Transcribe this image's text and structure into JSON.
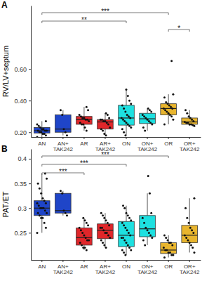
{
  "chart_data": [
    {
      "type": "box",
      "title": "A",
      "y_label": "RV/LV+septum",
      "categories": [
        "AN",
        "AN+\nTAK242",
        "AR",
        "AR+\nTAK242",
        "ON",
        "ON+\nTAK242",
        "OR",
        "OR+\nTAK242"
      ],
      "colors": [
        "#1f45c8",
        "#1f45c8",
        "#e0262a",
        "#e0262a",
        "#1ee0e0",
        "#1ee0e0",
        "#e8b52e",
        "#e8b52e"
      ],
      "ylim": [
        0.17,
        1.0
      ],
      "yticks": [
        {
          "value": 0.2,
          "label": "0.20"
        },
        {
          "value": 0.4,
          "label": "0.40"
        },
        {
          "value": 0.6,
          "label": "0.60"
        }
      ],
      "boxes": [
        {
          "min": 0.17,
          "q1": 0.195,
          "median": 0.21,
          "q3": 0.23,
          "max": 0.27,
          "points": [
            0.17,
            0.18,
            0.19,
            0.19,
            0.2,
            0.2,
            0.21,
            0.21,
            0.21,
            0.22,
            0.22,
            0.23,
            0.24,
            0.25,
            0.27
          ]
        },
        {
          "min": 0.18,
          "q1": 0.2,
          "median": 0.22,
          "q3": 0.31,
          "max": 0.34,
          "points": [
            0.18,
            0.2,
            0.22,
            0.31,
            0.34
          ]
        },
        {
          "min": 0.21,
          "q1": 0.25,
          "median": 0.28,
          "q3": 0.3,
          "max": 0.36,
          "points": [
            0.21,
            0.23,
            0.25,
            0.25,
            0.26,
            0.27,
            0.28,
            0.28,
            0.29,
            0.29,
            0.3,
            0.31,
            0.34,
            0.36
          ]
        },
        {
          "min": 0.18,
          "q1": 0.22,
          "median": 0.265,
          "q3": 0.28,
          "max": 0.32,
          "points": [
            0.18,
            0.19,
            0.21,
            0.22,
            0.23,
            0.25,
            0.26,
            0.27,
            0.27,
            0.28,
            0.28,
            0.29,
            0.31,
            0.32
          ]
        },
        {
          "min": 0.18,
          "q1": 0.245,
          "median": 0.29,
          "q3": 0.37,
          "max": 0.47,
          "points": [
            0.18,
            0.2,
            0.22,
            0.23,
            0.24,
            0.25,
            0.26,
            0.27,
            0.28,
            0.29,
            0.29,
            0.3,
            0.31,
            0.33,
            0.35,
            0.37,
            0.38,
            0.4,
            0.43,
            0.47
          ]
        },
        {
          "min": 0.21,
          "q1": 0.255,
          "median": 0.285,
          "q3": 0.32,
          "max": 0.35,
          "points": [
            0.21,
            0.23,
            0.25,
            0.26,
            0.27,
            0.28,
            0.29,
            0.3,
            0.31,
            0.33,
            0.34,
            0.35
          ]
        },
        {
          "min": 0.25,
          "q1": 0.31,
          "median": 0.35,
          "q3": 0.38,
          "max": 0.44,
          "points": [
            0.25,
            0.28,
            0.3,
            0.31,
            0.32,
            0.33,
            0.34,
            0.35,
            0.35,
            0.36,
            0.37,
            0.38,
            0.39,
            0.42,
            0.44,
            0.65
          ]
        },
        {
          "min": 0.24,
          "q1": 0.25,
          "median": 0.265,
          "q3": 0.29,
          "max": 0.34,
          "points": [
            0.24,
            0.245,
            0.25,
            0.25,
            0.26,
            0.26,
            0.265,
            0.27,
            0.28,
            0.29,
            0.3,
            0.32,
            0.34
          ]
        }
      ],
      "annotations": [
        {
          "between": [
            "AN",
            "OR"
          ],
          "text": "***"
        },
        {
          "between": [
            "AN",
            "ON"
          ],
          "text": "**"
        },
        {
          "between": [
            "OR",
            "OR+\nTAK242"
          ],
          "text": "*"
        }
      ]
    },
    {
      "type": "box",
      "title": "B",
      "y_label": "PAT/ET",
      "categories": [
        "AN",
        "AN+\nTAK242",
        "AR",
        "AR+\nTAK242",
        "ON",
        "ON+\nTAK242",
        "OR",
        "OR+\nTAK242"
      ],
      "colors": [
        "#1f45c8",
        "#1f45c8",
        "#e0262a",
        "#e0262a",
        "#1ee0e0",
        "#1ee0e0",
        "#e8b52e",
        "#e8b52e"
      ],
      "ylim": [
        0.195,
        0.42
      ],
      "yticks": [
        0.25,
        0.3,
        0.35,
        0.4
      ],
      "boxes": [
        {
          "min": 0.25,
          "q1": 0.285,
          "median": 0.3,
          "q3": 0.315,
          "max": 0.37,
          "points": [
            0.25,
            0.26,
            0.27,
            0.28,
            0.28,
            0.285,
            0.29,
            0.29,
            0.295,
            0.3,
            0.3,
            0.3,
            0.305,
            0.31,
            0.31,
            0.315,
            0.32,
            0.33,
            0.34,
            0.35,
            0.36,
            0.37
          ]
        },
        {
          "min": 0.285,
          "q1": 0.29,
          "median": 0.295,
          "q3": 0.33,
          "max": 0.335,
          "points": [
            0.285,
            0.29,
            0.295,
            0.33,
            0.335
          ]
        },
        {
          "min": 0.215,
          "q1": 0.225,
          "median": 0.24,
          "q3": 0.26,
          "max": 0.28,
          "points": [
            0.215,
            0.22,
            0.22,
            0.225,
            0.23,
            0.235,
            0.235,
            0.24,
            0.245,
            0.25,
            0.255,
            0.26,
            0.265,
            0.27,
            0.275,
            0.28
          ]
        },
        {
          "min": 0.22,
          "q1": 0.238,
          "median": 0.255,
          "q3": 0.268,
          "max": 0.29,
          "points": [
            0.22,
            0.225,
            0.23,
            0.235,
            0.24,
            0.245,
            0.25,
            0.25,
            0.255,
            0.26,
            0.26,
            0.265,
            0.27,
            0.275,
            0.28,
            0.285,
            0.29
          ]
        },
        {
          "min": 0.205,
          "q1": 0.222,
          "median": 0.245,
          "q3": 0.273,
          "max": 0.305,
          "points": [
            0.205,
            0.21,
            0.215,
            0.215,
            0.22,
            0.225,
            0.23,
            0.235,
            0.24,
            0.24,
            0.245,
            0.25,
            0.255,
            0.26,
            0.265,
            0.27,
            0.275,
            0.28,
            0.285,
            0.29,
            0.3,
            0.305
          ]
        },
        {
          "min": 0.225,
          "q1": 0.242,
          "median": 0.258,
          "q3": 0.285,
          "max": 0.33,
          "points": [
            0.225,
            0.235,
            0.24,
            0.245,
            0.25,
            0.255,
            0.26,
            0.27,
            0.28,
            0.29,
            0.33,
            0.365
          ]
        },
        {
          "min": 0.2,
          "q1": 0.208,
          "median": 0.215,
          "q3": 0.23,
          "max": 0.245,
          "points": [
            0.2,
            0.205,
            0.205,
            0.21,
            0.21,
            0.215,
            0.215,
            0.22,
            0.225,
            0.23,
            0.23,
            0.235,
            0.24,
            0.245
          ]
        },
        {
          "min": 0.21,
          "q1": 0.23,
          "median": 0.245,
          "q3": 0.265,
          "max": 0.32,
          "points": [
            0.21,
            0.22,
            0.225,
            0.23,
            0.235,
            0.24,
            0.245,
            0.25,
            0.255,
            0.26,
            0.27,
            0.28,
            0.3,
            0.32
          ]
        }
      ],
      "annotations": [
        {
          "between": [
            "AN",
            "OR"
          ],
          "text": "***"
        },
        {
          "between": [
            "AN",
            "ON"
          ],
          "text": "***"
        },
        {
          "between": [
            "AN",
            "AR"
          ],
          "text": "***"
        }
      ]
    }
  ]
}
